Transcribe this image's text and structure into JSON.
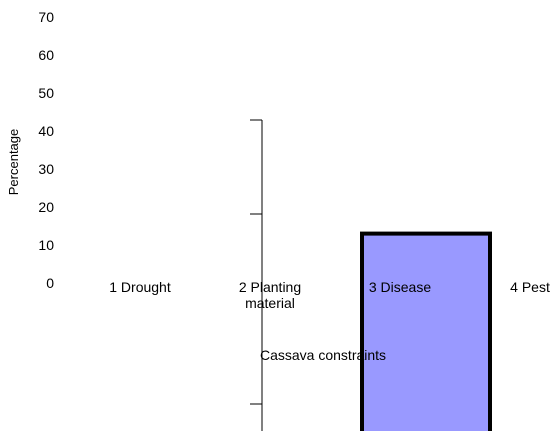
{
  "chart_data": {
    "type": "bar",
    "categories": [
      "1 Drought",
      "2 Planting material",
      "3 Disease",
      "4 Pest"
    ],
    "values": [
      null,
      null,
      13,
      null
    ],
    "color": "#9999ff",
    "x_label": "Cassava constraints",
    "y_label": "Percentage",
    "ylim": [
      0,
      70
    ],
    "yticks": [
      0,
      10,
      20,
      30,
      40,
      50,
      60,
      70
    ]
  }
}
